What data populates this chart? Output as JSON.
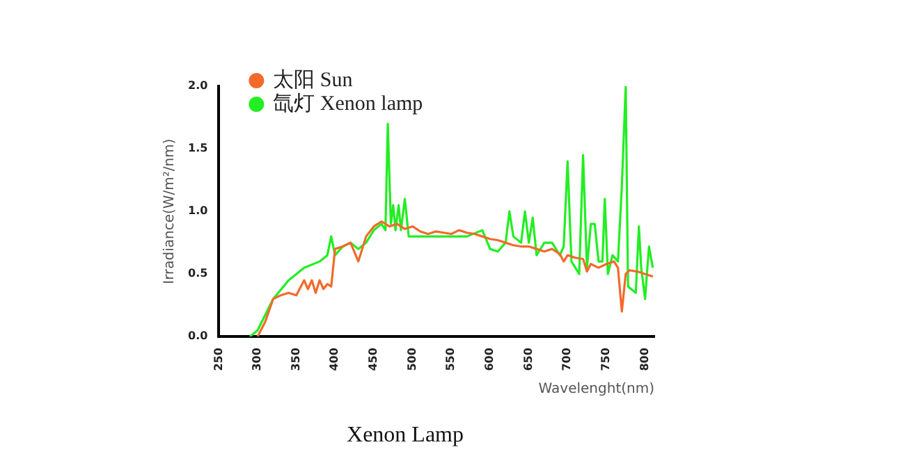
{
  "chart_data": {
    "type": "line",
    "title": "Xenon Lamp",
    "xlabel": "Wavelenght(nm)",
    "ylabel": "Irradiance(W/m²/nm)",
    "xlim": [
      250,
      812
    ],
    "xticks": [
      250,
      300,
      350,
      400,
      450,
      500,
      550,
      600,
      650,
      700,
      750,
      800
    ],
    "ylim": [
      0,
      2
    ],
    "yticks": [
      {
        "value": 0,
        "label": "0.0"
      },
      {
        "value": 0.5,
        "label": "0.5"
      },
      {
        "value": 1,
        "label": "1.0"
      },
      {
        "value": 1.5,
        "label": "1.5"
      },
      {
        "value": 2,
        "label": "2.0"
      }
    ],
    "grid": false,
    "legend": "top left",
    "marker": "none",
    "line_style": "solid",
    "series": [
      {
        "name": "太阳 Sun",
        "color": "#f26a2a",
        "x": [
          300,
          310,
          320,
          330,
          340,
          350,
          360,
          365,
          370,
          375,
          380,
          385,
          390,
          395,
          400,
          410,
          420,
          430,
          440,
          450,
          460,
          470,
          480,
          490,
          500,
          510,
          520,
          530,
          540,
          550,
          560,
          570,
          580,
          590,
          600,
          610,
          620,
          630,
          640,
          650,
          660,
          670,
          680,
          690,
          695,
          700,
          710,
          720,
          725,
          730,
          740,
          750,
          760,
          765,
          770,
          775,
          780,
          790,
          800,
          810
        ],
        "values": [
          0,
          0.12,
          0.3,
          0.33,
          0.35,
          0.33,
          0.45,
          0.38,
          0.45,
          0.35,
          0.45,
          0.38,
          0.42,
          0.4,
          0.7,
          0.72,
          0.75,
          0.6,
          0.8,
          0.88,
          0.92,
          0.88,
          0.9,
          0.86,
          0.88,
          0.84,
          0.82,
          0.84,
          0.83,
          0.82,
          0.85,
          0.83,
          0.82,
          0.8,
          0.78,
          0.77,
          0.75,
          0.73,
          0.72,
          0.72,
          0.7,
          0.68,
          0.7,
          0.66,
          0.6,
          0.65,
          0.63,
          0.62,
          0.52,
          0.58,
          0.55,
          0.58,
          0.6,
          0.55,
          0.2,
          0.5,
          0.53,
          0.52,
          0.5,
          0.48
        ]
      },
      {
        "name": "氙灯 Xenon lamp",
        "color": "#22ee22",
        "x": [
          290,
          300,
          320,
          340,
          360,
          380,
          390,
          395,
          400,
          410,
          420,
          430,
          440,
          450,
          460,
          465,
          468,
          472,
          475,
          478,
          482,
          485,
          490,
          495,
          500,
          520,
          550,
          570,
          590,
          600,
          610,
          620,
          625,
          630,
          640,
          645,
          650,
          655,
          660,
          670,
          680,
          690,
          695,
          700,
          705,
          710,
          715,
          720,
          725,
          730,
          735,
          740,
          745,
          748,
          752,
          758,
          765,
          770,
          775,
          778,
          782,
          788,
          792,
          795,
          800,
          805,
          810
        ],
        "values": [
          0,
          0.05,
          0.3,
          0.45,
          0.55,
          0.6,
          0.65,
          0.8,
          0.65,
          0.72,
          0.75,
          0.7,
          0.75,
          0.85,
          0.9,
          0.85,
          1.7,
          0.9,
          1.05,
          0.85,
          1.05,
          0.85,
          1.1,
          0.8,
          0.8,
          0.8,
          0.8,
          0.8,
          0.85,
          0.7,
          0.68,
          0.75,
          1.0,
          0.8,
          0.75,
          1.0,
          0.75,
          0.95,
          0.65,
          0.75,
          0.75,
          0.65,
          0.72,
          1.4,
          0.6,
          0.55,
          0.5,
          1.45,
          0.55,
          0.9,
          0.9,
          0.6,
          0.6,
          1.1,
          0.5,
          0.65,
          0.6,
          1.2,
          2.0,
          0.4,
          0.38,
          0.35,
          0.88,
          0.55,
          0.3,
          0.72,
          0.55
        ]
      }
    ]
  }
}
